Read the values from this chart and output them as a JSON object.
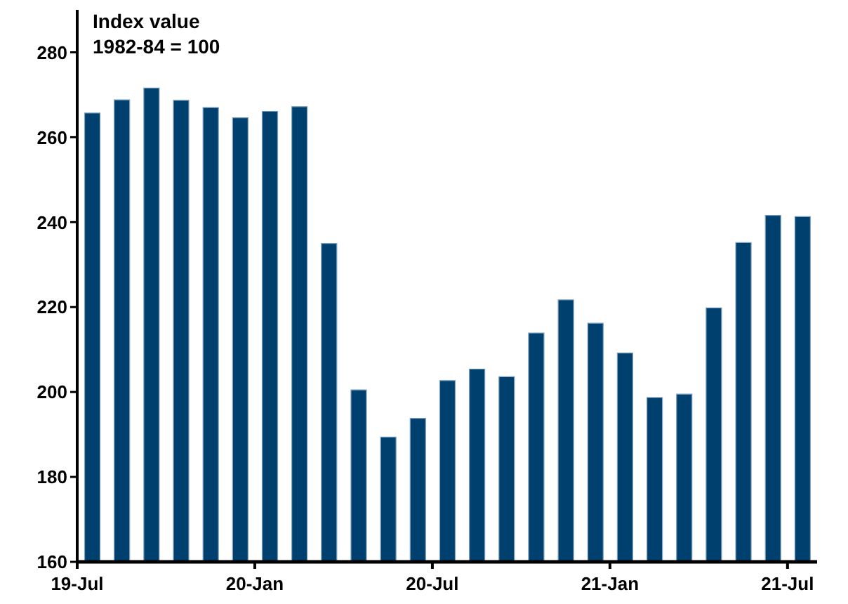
{
  "chart_data": {
    "type": "bar",
    "ylabel": "Index value\n1982-84 = 100",
    "categories": [
      "19-Jul",
      null,
      null,
      null,
      null,
      null,
      "20-Jan",
      null,
      null,
      null,
      null,
      null,
      "20-Jul",
      null,
      null,
      null,
      null,
      null,
      "21-Jan",
      null,
      null,
      null,
      null,
      null,
      "21-Jul"
    ],
    "values": [
      265.7,
      268.8,
      271.6,
      268.7,
      267,
      264.6,
      266.1,
      267.2,
      235,
      200.5,
      189.4,
      193.8,
      202.7,
      205.4,
      203.6,
      213.9,
      221.7,
      216.2,
      209.2,
      198.7,
      199.5,
      219.8,
      235.2,
      241.6,
      241.3
    ],
    "color": "#00406f",
    "ylim": [
      160,
      290
    ],
    "yticks": [
      160,
      180,
      200,
      220,
      240,
      260,
      280
    ],
    "grid": false,
    "legend": false
  }
}
